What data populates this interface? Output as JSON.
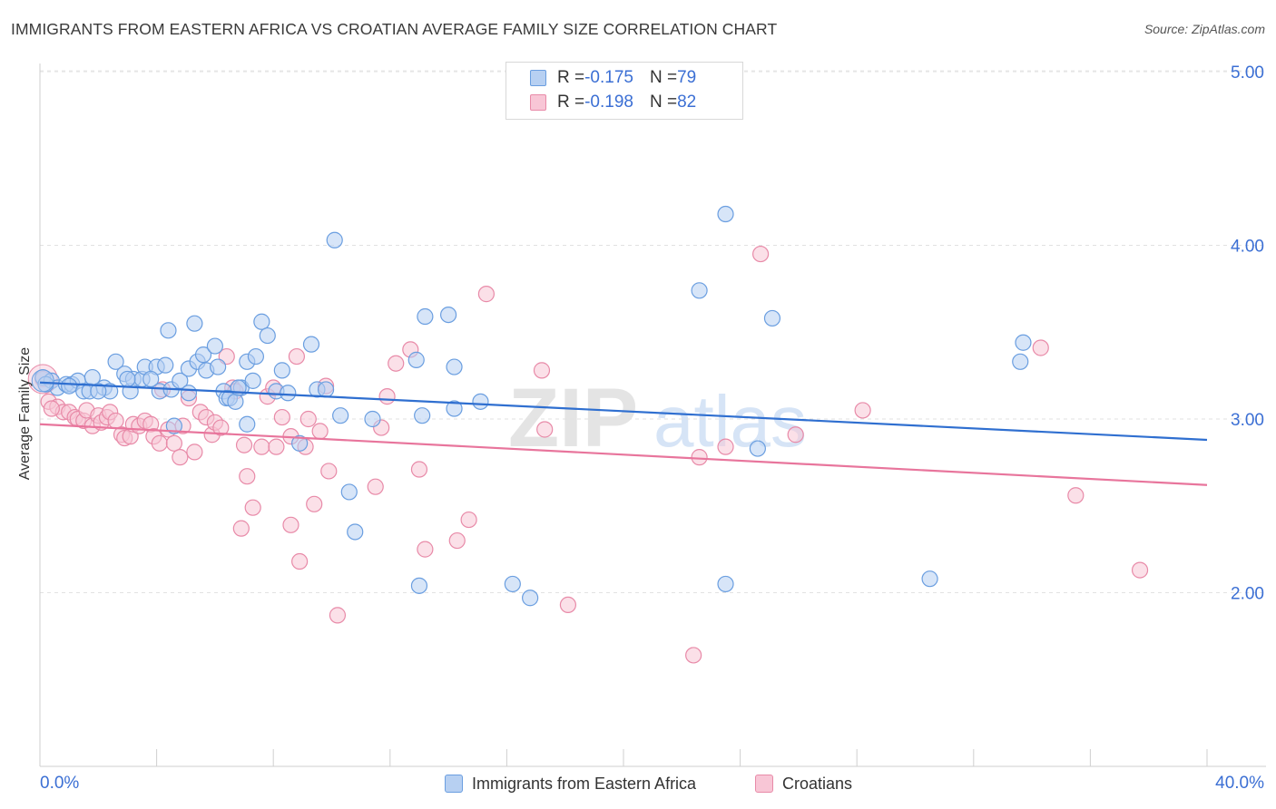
{
  "header": {
    "title": "IMMIGRANTS FROM EASTERN AFRICA VS CROATIAN AVERAGE FAMILY SIZE CORRELATION CHART",
    "source": "Source: ZipAtlas.com"
  },
  "legend_top": {
    "rows": [
      {
        "r_label": "R = ",
        "r_value": "-0.175",
        "n_label": "N = ",
        "n_value": "79"
      },
      {
        "r_label": "R = ",
        "r_value": "-0.198",
        "n_label": "N = ",
        "n_value": "82"
      }
    ]
  },
  "watermark": {
    "part1": "ZIP",
    "part2": "atlas"
  },
  "colors": {
    "blue_fill": "#b7d0f2",
    "blue_stroke": "#6a9ee0",
    "blue_line": "#2f6fd0",
    "pink_fill": "#f8c6d6",
    "pink_stroke": "#e88aa8",
    "pink_line": "#e8759c",
    "axis_label": "#3b6fd4"
  },
  "chart_data": {
    "type": "scatter",
    "title": "IMMIGRANTS FROM EASTERN AFRICA VS CROATIAN AVERAGE FAMILY SIZE CORRELATION CHART",
    "xlabel": "",
    "ylabel": "Average Family Size",
    "xlim": [
      0,
      40
    ],
    "ylim": [
      1.0,
      5.1
    ],
    "x_tick_labels": [
      "0.0%",
      "40.0%"
    ],
    "y_ticks": [
      2.0,
      3.0,
      4.0,
      5.0
    ],
    "y_tick_labels": [
      "2.00",
      "3.00",
      "4.00",
      "5.00"
    ],
    "grid": true,
    "legend_position": "bottom",
    "series": [
      {
        "name": "Immigrants from Eastern Africa",
        "color": "blue",
        "trend": {
          "x": [
            0,
            40
          ],
          "y": [
            3.21,
            2.88
          ]
        },
        "points": [
          [
            0.1,
            3.24
          ],
          [
            0.4,
            3.22
          ],
          [
            0.6,
            3.18
          ],
          [
            0.9,
            3.2
          ],
          [
            1.1,
            3.2
          ],
          [
            1.3,
            3.22
          ],
          [
            1.5,
            3.16
          ],
          [
            1.7,
            3.16
          ],
          [
            1.8,
            3.24
          ],
          [
            2.2,
            3.18
          ],
          [
            2.4,
            3.16
          ],
          [
            2.6,
            3.33
          ],
          [
            2.9,
            3.26
          ],
          [
            3.1,
            3.16
          ],
          [
            3.2,
            3.23
          ],
          [
            3.5,
            3.23
          ],
          [
            3.6,
            3.3
          ],
          [
            4.0,
            3.3
          ],
          [
            4.1,
            3.16
          ],
          [
            4.3,
            3.31
          ],
          [
            4.4,
            3.51
          ],
          [
            4.5,
            3.17
          ],
          [
            4.8,
            3.22
          ],
          [
            5.1,
            3.15
          ],
          [
            5.1,
            3.29
          ],
          [
            5.3,
            3.55
          ],
          [
            5.4,
            3.33
          ],
          [
            5.6,
            3.37
          ],
          [
            5.7,
            3.28
          ],
          [
            6.0,
            3.42
          ],
          [
            6.1,
            3.3
          ],
          [
            6.3,
            3.16
          ],
          [
            6.4,
            3.12
          ],
          [
            6.5,
            3.12
          ],
          [
            6.7,
            3.1
          ],
          [
            6.9,
            3.18
          ],
          [
            7.1,
            3.33
          ],
          [
            7.3,
            3.22
          ],
          [
            7.4,
            3.36
          ],
          [
            7.6,
            3.56
          ],
          [
            7.8,
            3.48
          ],
          [
            8.1,
            3.16
          ],
          [
            8.3,
            3.28
          ],
          [
            8.5,
            3.15
          ],
          [
            8.9,
            2.86
          ],
          [
            9.3,
            3.43
          ],
          [
            9.5,
            3.17
          ],
          [
            10.1,
            4.03
          ],
          [
            10.3,
            3.02
          ],
          [
            10.6,
            2.58
          ],
          [
            10.8,
            2.35
          ],
          [
            11.4,
            3.0
          ],
          [
            12.9,
            3.34
          ],
          [
            13.0,
            2.04
          ],
          [
            13.1,
            3.02
          ],
          [
            13.2,
            3.59
          ],
          [
            14.0,
            3.6
          ],
          [
            14.2,
            3.3
          ],
          [
            14.2,
            3.06
          ],
          [
            15.1,
            3.1
          ],
          [
            16.2,
            2.05
          ],
          [
            16.8,
            1.97
          ],
          [
            22.6,
            3.74
          ],
          [
            23.5,
            4.18
          ],
          [
            23.5,
            2.05
          ],
          [
            24.6,
            2.83
          ],
          [
            25.1,
            3.58
          ],
          [
            30.5,
            2.08
          ],
          [
            33.6,
            3.33
          ],
          [
            33.7,
            3.44
          ],
          [
            0.2,
            3.2
          ],
          [
            1.0,
            3.19
          ],
          [
            2.0,
            3.16
          ],
          [
            3.8,
            3.23
          ],
          [
            4.6,
            2.96
          ],
          [
            7.1,
            2.97
          ],
          [
            9.8,
            3.17
          ],
          [
            6.8,
            3.18
          ],
          [
            3.0,
            3.23
          ]
        ]
      },
      {
        "name": "Croatians",
        "color": "pink",
        "trend": {
          "x": [
            0,
            40
          ],
          "y": [
            2.97,
            2.62
          ]
        },
        "points": [
          [
            0.1,
            3.23
          ],
          [
            0.3,
            3.1
          ],
          [
            0.6,
            3.07
          ],
          [
            0.8,
            3.04
          ],
          [
            1.0,
            3.04
          ],
          [
            1.2,
            3.01
          ],
          [
            1.3,
            3.0
          ],
          [
            1.5,
            2.99
          ],
          [
            1.6,
            3.05
          ],
          [
            1.8,
            2.96
          ],
          [
            2.0,
            3.02
          ],
          [
            2.1,
            2.98
          ],
          [
            2.3,
            3.01
          ],
          [
            2.4,
            3.04
          ],
          [
            2.6,
            2.99
          ],
          [
            2.8,
            2.91
          ],
          [
            2.9,
            2.89
          ],
          [
            3.1,
            2.9
          ],
          [
            3.2,
            2.97
          ],
          [
            3.4,
            2.96
          ],
          [
            3.6,
            2.99
          ],
          [
            3.8,
            2.97
          ],
          [
            3.9,
            2.9
          ],
          [
            4.1,
            2.86
          ],
          [
            4.2,
            3.17
          ],
          [
            4.4,
            2.94
          ],
          [
            4.6,
            2.86
          ],
          [
            4.8,
            2.78
          ],
          [
            4.9,
            2.96
          ],
          [
            5.1,
            3.12
          ],
          [
            5.3,
            2.81
          ],
          [
            5.5,
            3.04
          ],
          [
            5.7,
            3.01
          ],
          [
            5.9,
            2.91
          ],
          [
            6.0,
            2.98
          ],
          [
            6.2,
            2.95
          ],
          [
            6.4,
            3.36
          ],
          [
            6.6,
            3.18
          ],
          [
            6.7,
            3.16
          ],
          [
            6.9,
            2.37
          ],
          [
            7.0,
            2.85
          ],
          [
            7.1,
            2.67
          ],
          [
            7.3,
            2.49
          ],
          [
            7.6,
            2.84
          ],
          [
            7.8,
            3.13
          ],
          [
            8.0,
            3.18
          ],
          [
            8.1,
            2.84
          ],
          [
            8.3,
            3.01
          ],
          [
            8.6,
            2.9
          ],
          [
            8.6,
            2.39
          ],
          [
            8.8,
            3.36
          ],
          [
            8.9,
            2.18
          ],
          [
            9.1,
            2.84
          ],
          [
            9.2,
            3.0
          ],
          [
            9.4,
            2.51
          ],
          [
            9.6,
            2.93
          ],
          [
            9.8,
            3.19
          ],
          [
            9.9,
            2.7
          ],
          [
            10.2,
            1.87
          ],
          [
            11.5,
            2.61
          ],
          [
            11.7,
            2.95
          ],
          [
            11.9,
            3.13
          ],
          [
            12.2,
            3.32
          ],
          [
            12.7,
            3.4
          ],
          [
            13.0,
            2.71
          ],
          [
            13.2,
            2.25
          ],
          [
            14.3,
            2.3
          ],
          [
            14.7,
            2.42
          ],
          [
            15.3,
            3.72
          ],
          [
            17.2,
            3.28
          ],
          [
            17.3,
            2.94
          ],
          [
            18.1,
            1.93
          ],
          [
            22.4,
            1.64
          ],
          [
            22.6,
            2.78
          ],
          [
            23.5,
            2.84
          ],
          [
            24.7,
            3.95
          ],
          [
            25.9,
            2.91
          ],
          [
            28.2,
            3.05
          ],
          [
            34.3,
            3.41
          ],
          [
            35.5,
            2.56
          ],
          [
            37.7,
            2.13
          ],
          [
            0.4,
            3.06
          ]
        ]
      }
    ]
  }
}
